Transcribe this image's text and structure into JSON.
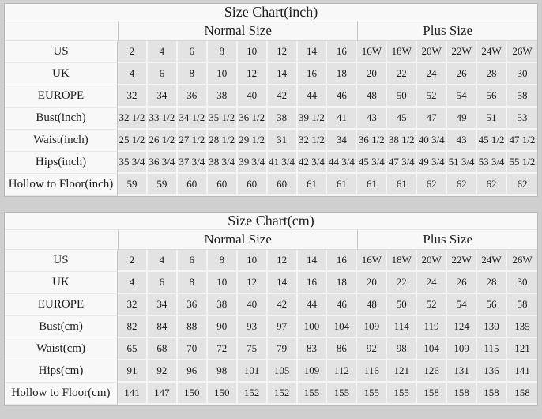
{
  "colors": {
    "page_background": "#cfcfcf",
    "cell_gray": "#e3e3e3",
    "panel_white": "#f8f8f8",
    "text": "#1e1e1e"
  },
  "tables": [
    {
      "title": "Size Chart(inch)",
      "normal_label": "Normal Size",
      "plus_label": "Plus Size",
      "rows": [
        {
          "label": "US",
          "values": [
            "2",
            "4",
            "6",
            "8",
            "10",
            "12",
            "14",
            "16",
            "16W",
            "18W",
            "20W",
            "22W",
            "24W",
            "26W"
          ]
        },
        {
          "label": "UK",
          "values": [
            "4",
            "6",
            "8",
            "10",
            "12",
            "14",
            "16",
            "18",
            "20",
            "22",
            "24",
            "26",
            "28",
            "30"
          ]
        },
        {
          "label": "EUROPE",
          "values": [
            "32",
            "34",
            "36",
            "38",
            "40",
            "42",
            "44",
            "46",
            "48",
            "50",
            "52",
            "54",
            "56",
            "58"
          ]
        },
        {
          "label": "Bust(inch)",
          "values": [
            "32 1/2",
            "33 1/2",
            "34 1/2",
            "35 1/2",
            "36 1/2",
            "38",
            "39 1/2",
            "41",
            "43",
            "45",
            "47",
            "49",
            "51",
            "53"
          ]
        },
        {
          "label": "Waist(inch)",
          "values": [
            "25 1/2",
            "26 1/2",
            "27 1/2",
            "28 1/2",
            "29 1/2",
            "31",
            "32 1/2",
            "34",
            "36 1/2",
            "38 1/2",
            "40 3/4",
            "43",
            "45 1/2",
            "47 1/2"
          ]
        },
        {
          "label": "Hips(inch)",
          "values": [
            "35 3/4",
            "36 3/4",
            "37 3/4",
            "38 3/4",
            "39 3/4",
            "41 3/4",
            "42 3/4",
            "44 3/4",
            "45 3/4",
            "47 3/4",
            "49 3/4",
            "51 3/4",
            "53 3/4",
            "55 1/2"
          ]
        },
        {
          "label": "Hollow to Floor(inch)",
          "values": [
            "59",
            "59",
            "60",
            "60",
            "60",
            "60",
            "61",
            "61",
            "61",
            "61",
            "62",
            "62",
            "62",
            "62"
          ]
        }
      ]
    },
    {
      "title": "Size Chart(cm)",
      "normal_label": "Normal Size",
      "plus_label": "Plus Size",
      "rows": [
        {
          "label": "US",
          "values": [
            "2",
            "4",
            "6",
            "8",
            "10",
            "12",
            "14",
            "16",
            "16W",
            "18W",
            "20W",
            "22W",
            "24W",
            "26W"
          ]
        },
        {
          "label": "UK",
          "values": [
            "4",
            "6",
            "8",
            "10",
            "12",
            "14",
            "16",
            "18",
            "20",
            "22",
            "24",
            "26",
            "28",
            "30"
          ]
        },
        {
          "label": "EUROPE",
          "values": [
            "32",
            "34",
            "36",
            "38",
            "40",
            "42",
            "44",
            "46",
            "48",
            "50",
            "52",
            "54",
            "56",
            "58"
          ]
        },
        {
          "label": "Bust(cm)",
          "values": [
            "82",
            "84",
            "88",
            "90",
            "93",
            "97",
            "100",
            "104",
            "109",
            "114",
            "119",
            "124",
            "130",
            "135"
          ]
        },
        {
          "label": "Waist(cm)",
          "values": [
            "65",
            "68",
            "70",
            "72",
            "75",
            "79",
            "83",
            "86",
            "92",
            "98",
            "104",
            "109",
            "115",
            "121"
          ]
        },
        {
          "label": "Hips(cm)",
          "values": [
            "91",
            "92",
            "96",
            "98",
            "101",
            "105",
            "109",
            "112",
            "116",
            "121",
            "126",
            "131",
            "136",
            "141"
          ]
        },
        {
          "label": "Hollow to Floor(cm)",
          "values": [
            "141",
            "147",
            "150",
            "150",
            "152",
            "152",
            "155",
            "155",
            "155",
            "155",
            "158",
            "158",
            "158",
            "158"
          ]
        }
      ]
    }
  ]
}
